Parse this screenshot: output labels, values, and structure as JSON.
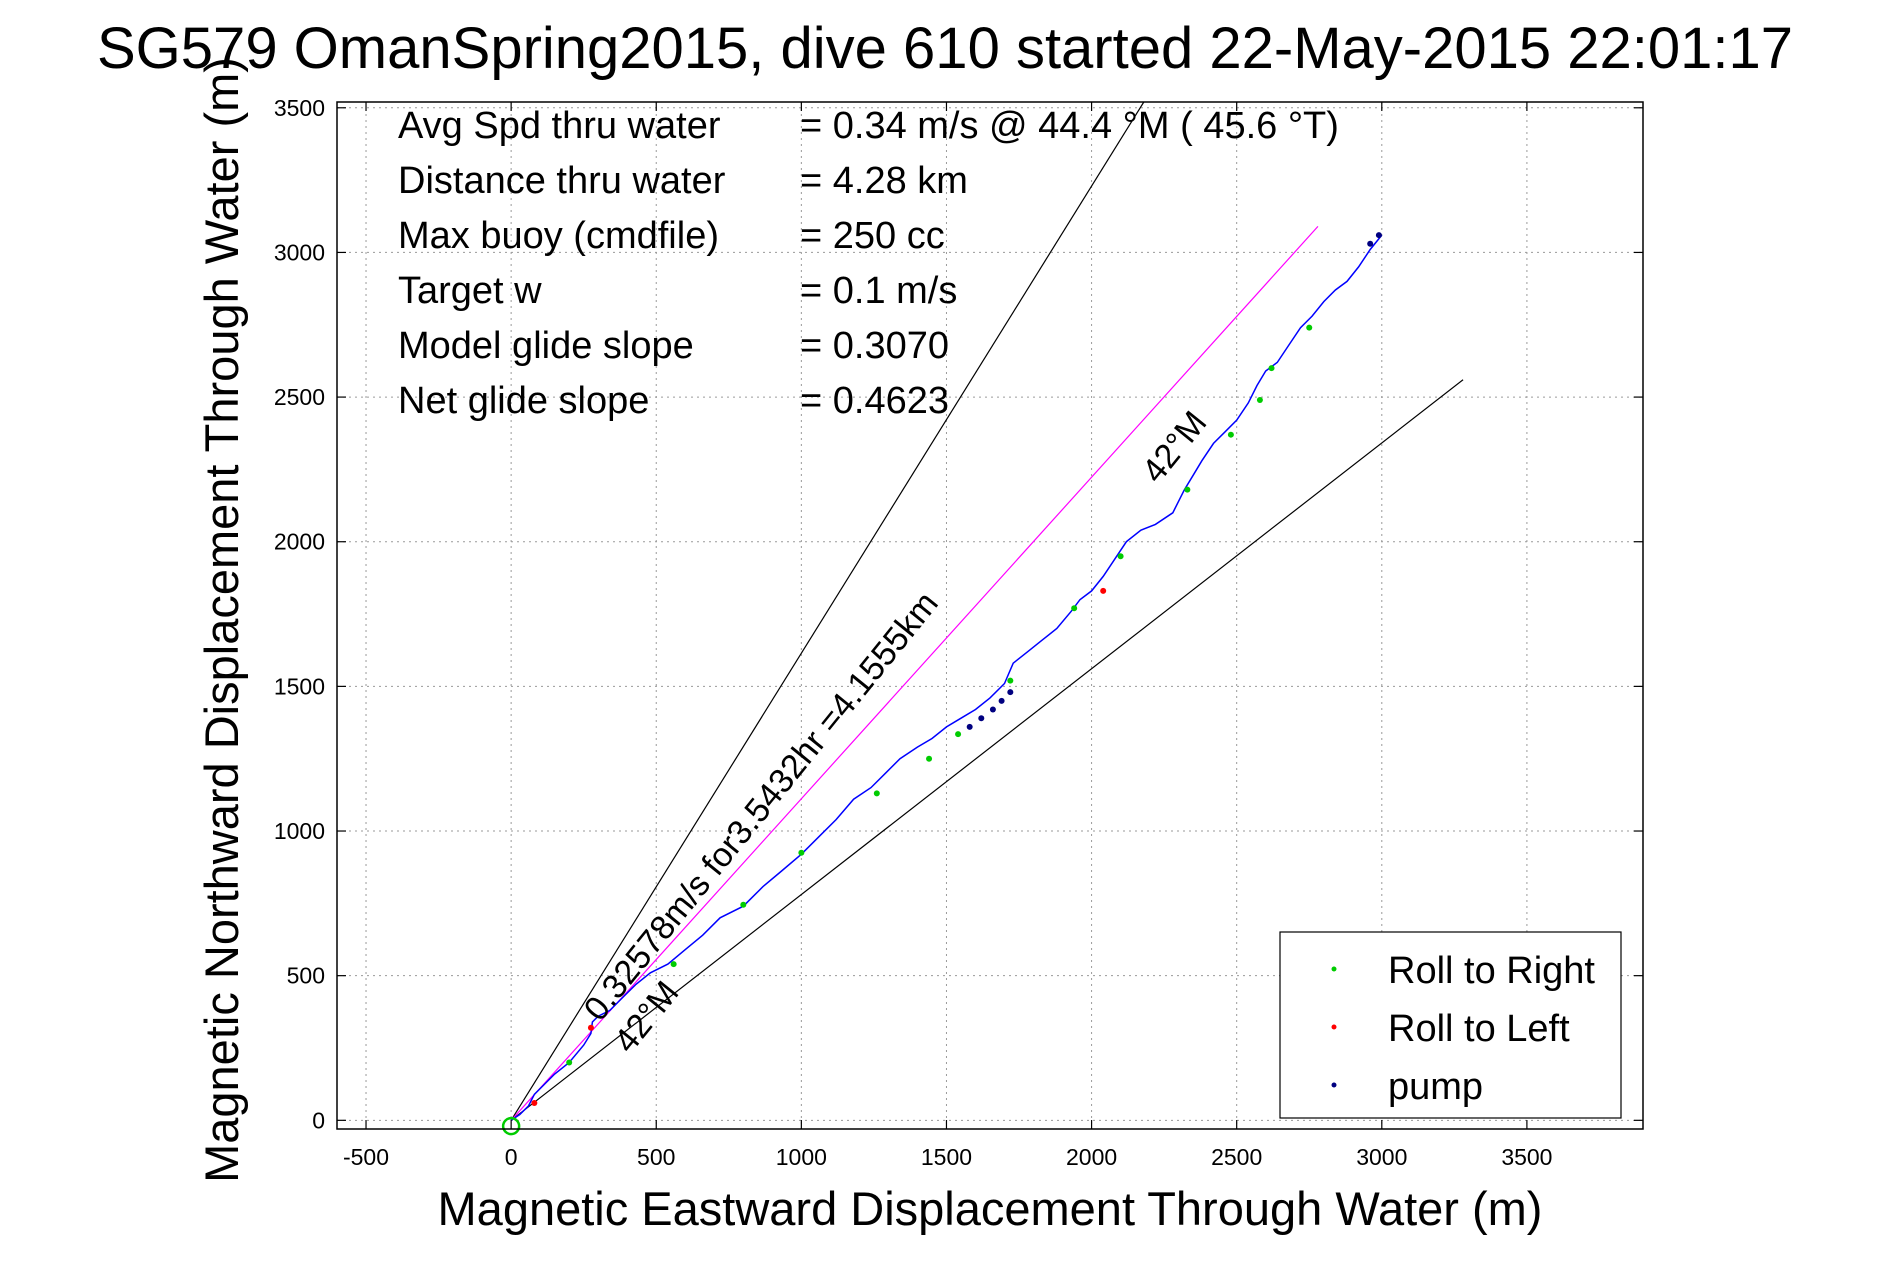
{
  "chart_data": {
    "type": "line",
    "title": "SG579 OmanSpring2015, dive 610 started 22-May-2015 22:01:17",
    "xlabel": "Magnetic Eastward Displacement Through Water (m)",
    "ylabel": "Magnetic Northward Displacement Through Water (m)",
    "xlim": [
      -600,
      3900
    ],
    "ylim": [
      -30,
      3520
    ],
    "xticks": [
      -500,
      0,
      500,
      1000,
      1500,
      2000,
      2500,
      3000,
      3500
    ],
    "yticks": [
      0,
      500,
      1000,
      1500,
      2000,
      2500,
      3000,
      3500
    ],
    "grid": true,
    "info_lines": [
      {
        "label": "Avg Spd thru water",
        "value": "=  0.34 m/s @  44.4 °M ( 45.6 °T)"
      },
      {
        "label": "Distance thru water",
        "value": "=  4.28 km"
      },
      {
        "label": "Max buoy (cmdfile)",
        "value": "= 250 cc"
      },
      {
        "label": "Target w",
        "value": "= 0.1 m/s"
      },
      {
        "label": "Model glide slope",
        "value": "= 0.3070"
      },
      {
        "label": "Net glide slope",
        "value": "= 0.4623"
      }
    ],
    "annotations": {
      "speed_line_label": "0.32578m/s for3.5432hr =4.1555km",
      "upper_heading_label": "42°M",
      "lower_heading_label": "42°M"
    },
    "reference_lines": [
      {
        "name": "upper-bound",
        "color": "#000000",
        "x": [
          0,
          2180
        ],
        "y": [
          0,
          3520
        ]
      },
      {
        "name": "lower-bound",
        "color": "#000000",
        "x": [
          0,
          3280
        ],
        "y": [
          0,
          2560
        ]
      },
      {
        "name": "speed-line",
        "color": "#ff00ff",
        "x": [
          0,
          2780
        ],
        "y": [
          0,
          3090
        ]
      }
    ],
    "track": {
      "color": "#0000ff",
      "x": [
        0,
        30,
        60,
        80,
        110,
        150,
        200,
        250,
        275,
        280,
        300,
        340,
        390,
        430,
        480,
        540,
        600,
        660,
        720,
        800,
        870,
        930,
        1000,
        1060,
        1120,
        1180,
        1240,
        1290,
        1340,
        1400,
        1450,
        1500,
        1550,
        1600,
        1650,
        1700,
        1730,
        1780,
        1830,
        1880,
        1930,
        1960,
        2000,
        2040,
        2080,
        2120,
        2170,
        2220,
        2280,
        2320,
        2350,
        2380,
        2420,
        2460,
        2500,
        2540,
        2570,
        2600,
        2640,
        2680,
        2720,
        2760,
        2800,
        2840,
        2880,
        2920,
        2960,
        3000
      ],
      "y": [
        0,
        20,
        50,
        90,
        120,
        160,
        200,
        260,
        300,
        340,
        360,
        380,
        430,
        470,
        510,
        540,
        590,
        640,
        700,
        740,
        810,
        860,
        920,
        980,
        1040,
        1110,
        1150,
        1200,
        1250,
        1290,
        1320,
        1360,
        1390,
        1420,
        1460,
        1510,
        1580,
        1620,
        1660,
        1700,
        1760,
        1800,
        1830,
        1880,
        1940,
        2000,
        2040,
        2060,
        2100,
        2180,
        2230,
        2280,
        2340,
        2380,
        2420,
        2480,
        2540,
        2590,
        2620,
        2680,
        2740,
        2780,
        2830,
        2870,
        2900,
        2950,
        3010,
        3060
      ]
    },
    "markers": {
      "roll_right": {
        "color": "#00cc00",
        "x": [
          200,
          560,
          800,
          1000,
          1260,
          1440,
          1540,
          1720,
          1940,
          2100,
          2330,
          2480,
          2580,
          2620,
          2750
        ],
        "y": [
          200,
          540,
          745,
          925,
          1130,
          1250,
          1335,
          1520,
          1770,
          1950,
          2180,
          2370,
          2490,
          2600,
          2740
        ]
      },
      "roll_left": {
        "color": "#ff0000",
        "x": [
          80,
          275,
          2040
        ],
        "y": [
          60,
          320,
          1830
        ]
      },
      "pump": {
        "color": "#000080",
        "x": [
          1580,
          1620,
          1660,
          1690,
          1720,
          2960,
          2990
        ],
        "y": [
          1360,
          1390,
          1420,
          1450,
          1480,
          3030,
          3060
        ]
      }
    },
    "legend": {
      "placement": "bottom-right",
      "entries": [
        {
          "label": "Roll to Right",
          "color": "#00cc00"
        },
        {
          "label": "Roll to Left",
          "color": "#ff0000"
        },
        {
          "label": "pump",
          "color": "#000080"
        }
      ]
    }
  }
}
